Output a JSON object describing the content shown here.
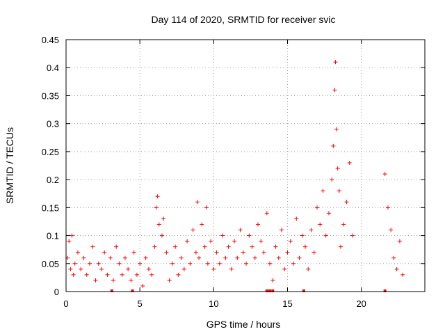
{
  "chart_data": {
    "type": "scatter",
    "title": "Day 114 of 2020, SRMTID for receiver svic",
    "xlabel": "GPS time / hours",
    "ylabel": "SRMTID / TECUs",
    "xlim": [
      0,
      24.3
    ],
    "ylim": [
      0,
      0.45
    ],
    "x_ticks": [
      "0",
      "5",
      "10",
      "15",
      "20"
    ],
    "x_tick_values": [
      0,
      5,
      10,
      15,
      20
    ],
    "y_ticks": [
      "0",
      "0.05",
      "0.1",
      "0.15",
      "0.2",
      "0.25",
      "0.3",
      "0.35",
      "0.4",
      "0.45"
    ],
    "y_tick_values": [
      0,
      0.05,
      0.1,
      0.15,
      0.2,
      0.25,
      0.3,
      0.35,
      0.4,
      0.45
    ],
    "grid": true,
    "marker": "+",
    "color": "#ff0000",
    "series": [
      {
        "name": "SRMTID",
        "x": [
          0.1,
          0.2,
          0.3,
          0.4,
          0.5,
          0.6,
          0.8,
          1.0,
          1.2,
          1.4,
          1.6,
          1.8,
          2.0,
          2.2,
          2.4,
          2.6,
          2.8,
          3.0,
          3.2,
          3.4,
          3.6,
          3.8,
          4.0,
          4.2,
          4.4,
          4.6,
          4.8,
          5.0,
          5.2,
          5.4,
          5.6,
          5.8,
          6.0,
          6.1,
          6.2,
          6.3,
          6.5,
          6.6,
          6.8,
          7.0,
          7.2,
          7.4,
          7.6,
          7.8,
          8.0,
          8.2,
          8.4,
          8.6,
          8.8,
          8.9,
          9.0,
          9.2,
          9.4,
          9.5,
          9.6,
          9.8,
          10.0,
          10.2,
          10.4,
          10.6,
          10.8,
          11.0,
          11.2,
          11.4,
          11.6,
          11.8,
          12.0,
          12.2,
          12.4,
          12.6,
          12.8,
          13.0,
          13.2,
          13.4,
          13.6,
          13.8,
          14.0,
          14.2,
          14.4,
          14.6,
          14.8,
          15.0,
          15.2,
          15.4,
          15.6,
          15.8,
          16.0,
          16.2,
          16.4,
          16.6,
          16.8,
          17.0,
          17.2,
          17.4,
          17.6,
          17.8,
          18.0,
          18.1,
          18.2,
          18.25,
          18.3,
          18.4,
          18.5,
          18.6,
          18.8,
          19.0,
          19.2,
          19.4,
          21.6,
          21.8,
          22.0,
          22.2,
          22.4,
          22.6,
          22.8
        ],
        "y": [
          0.06,
          0.09,
          0.04,
          0.1,
          0.03,
          0.05,
          0.07,
          0.04,
          0.06,
          0.03,
          0.05,
          0.08,
          0.02,
          0.05,
          0.04,
          0.07,
          0.03,
          0.06,
          0.02,
          0.08,
          0.05,
          0.03,
          0.06,
          0.04,
          0.02,
          0.07,
          0.03,
          0.05,
          0.01,
          0.06,
          0.04,
          0.03,
          0.08,
          0.15,
          0.17,
          0.12,
          0.1,
          0.13,
          0.07,
          0.02,
          0.05,
          0.08,
          0.03,
          0.06,
          0.04,
          0.09,
          0.05,
          0.11,
          0.07,
          0.16,
          0.06,
          0.12,
          0.08,
          0.15,
          0.05,
          0.09,
          0.04,
          0.07,
          0.05,
          0.1,
          0.06,
          0.08,
          0.04,
          0.09,
          0.06,
          0.11,
          0.07,
          0.05,
          0.1,
          0.08,
          0.06,
          0.12,
          0.09,
          0.07,
          0.14,
          0.05,
          0.02,
          0.08,
          0.06,
          0.11,
          0.04,
          0.07,
          0.09,
          0.05,
          0.13,
          0.06,
          0.1,
          0.08,
          0.04,
          0.11,
          0.07,
          0.15,
          0.12,
          0.18,
          0.1,
          0.14,
          0.2,
          0.26,
          0.36,
          0.41,
          0.29,
          0.22,
          0.18,
          0.08,
          0.12,
          0.16,
          0.23,
          0.1,
          0.21,
          0.15,
          0.11,
          0.06,
          0.04,
          0.09,
          0.03
        ]
      }
    ],
    "zero_markers_x": [
      3.1,
      4.5,
      13.6,
      13.8,
      14.0,
      16.1,
      21.6
    ]
  }
}
